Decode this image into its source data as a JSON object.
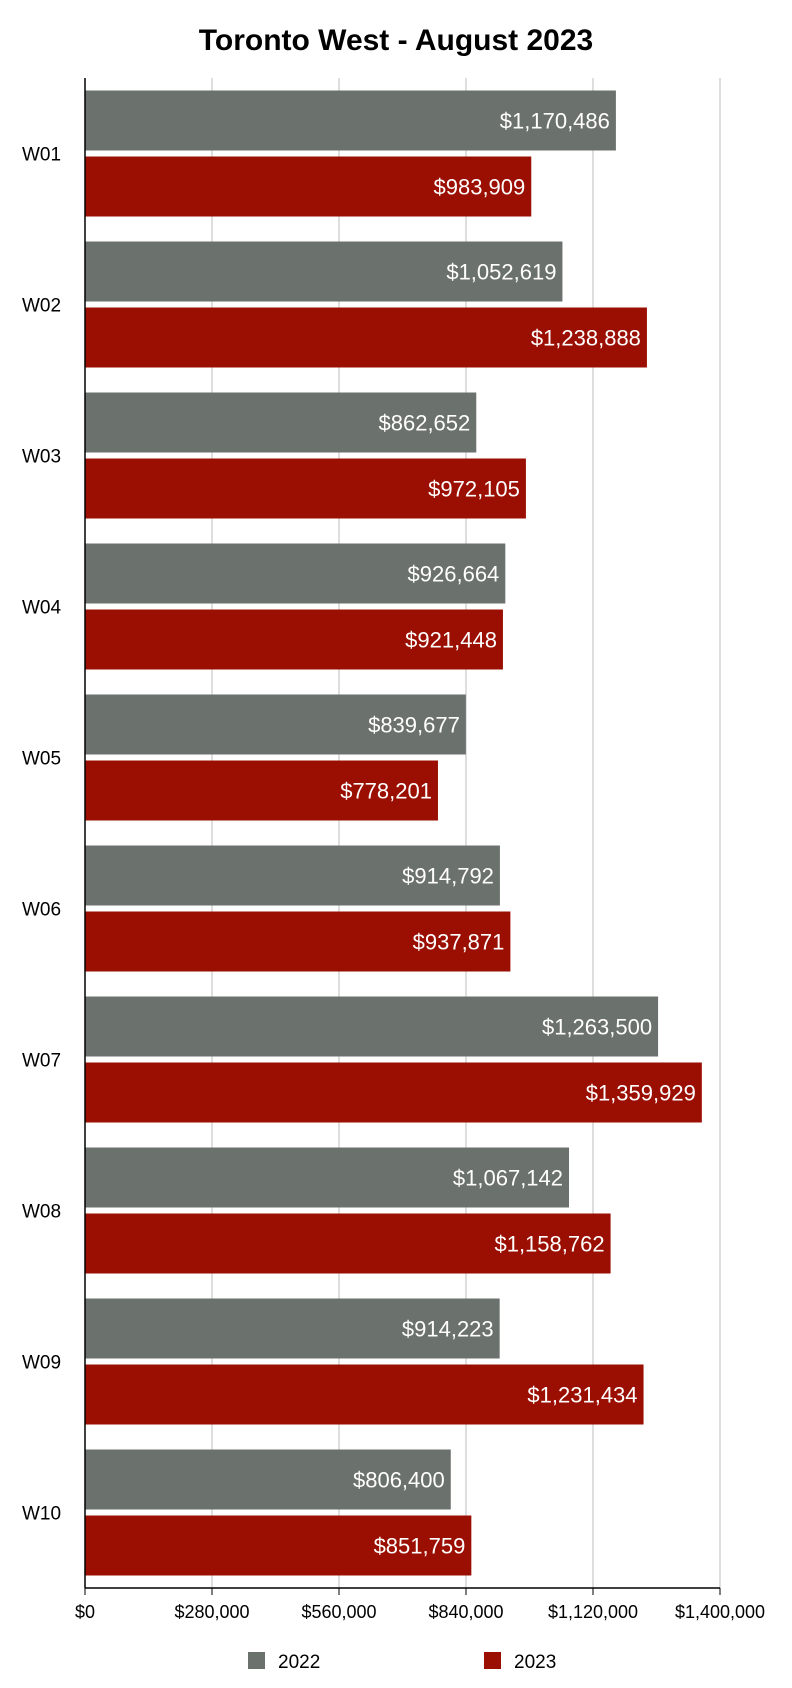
{
  "chart_data": {
    "type": "bar",
    "orientation": "horizontal",
    "title": "Toronto West - August 2023",
    "xlabel": "",
    "ylabel": "",
    "categories": [
      "W01",
      "W02",
      "W03",
      "W04",
      "W05",
      "W06",
      "W07",
      "W08",
      "W09",
      "W10"
    ],
    "series": [
      {
        "name": "2022",
        "color": "#6b716d",
        "values": [
          1170486,
          1052619,
          862652,
          926664,
          839677,
          914792,
          1263500,
          1067142,
          914223,
          806400
        ],
        "labels": [
          "$1,170,486",
          "$1,052,619",
          "$862,652",
          "$926,664",
          "$839,677",
          "$914,792",
          "$1,263,500",
          "$1,067,142",
          "$914,223",
          "$806,400"
        ]
      },
      {
        "name": "2023",
        "color": "#9a0f02",
        "values": [
          983909,
          1238888,
          972105,
          921448,
          778201,
          937871,
          1359929,
          1158762,
          1231434,
          851759
        ],
        "labels": [
          "$983,909",
          "$1,238,888",
          "$972,105",
          "$921,448",
          "$778,201",
          "$937,871",
          "$1,359,929",
          "$1,158,762",
          "$1,231,434",
          "$851,759"
        ]
      }
    ],
    "xlim": [
      0,
      1400000
    ],
    "ticks": [
      0,
      280000,
      560000,
      840000,
      1120000,
      1400000
    ],
    "tick_labels": [
      "$0",
      "$280,000",
      "$560,000",
      "$840,000",
      "$1,120,000",
      "$1,400,000"
    ],
    "grid": true,
    "legend_position": "bottom"
  }
}
